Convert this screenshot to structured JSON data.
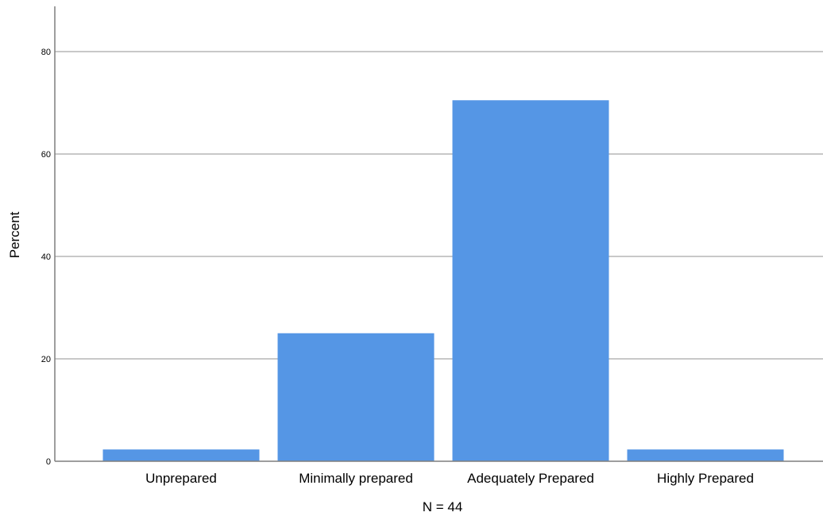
{
  "chart_data": {
    "type": "bar",
    "categories": [
      "Unprepared",
      "Minimally prepared",
      "Adequately Prepared",
      "Highly Prepared"
    ],
    "values": [
      2.3,
      25.0,
      70.5,
      2.3
    ],
    "title": "",
    "xlabel": "N = 44",
    "ylabel": "Percent",
    "ylim": [
      0,
      88
    ],
    "yticks": [
      0,
      20,
      40,
      60,
      80
    ],
    "grid": true,
    "bar_color": "#5596e5",
    "grid_color": "#b5b5b5",
    "axis_color": "#7f7f7f"
  }
}
